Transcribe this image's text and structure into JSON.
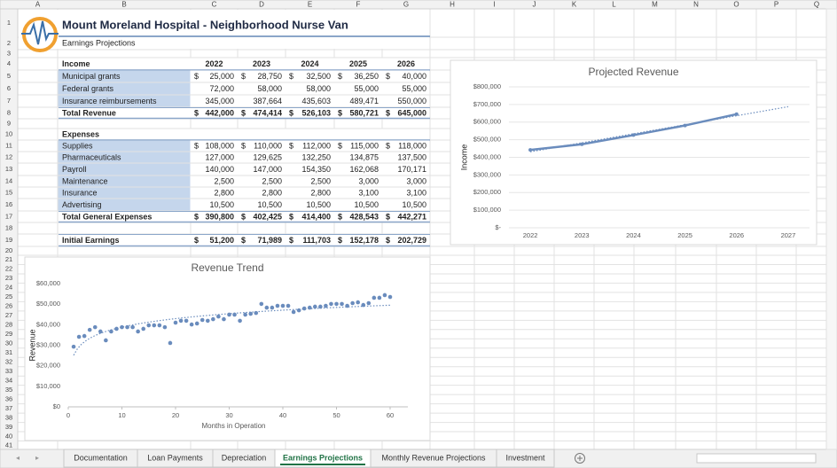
{
  "header": {
    "title": "Mount Moreland Hospital - Neighborhood Nurse Van",
    "subtitle": "Earnings Projections"
  },
  "columns": [
    "A",
    "B",
    "C",
    "D",
    "E",
    "F",
    "G",
    "H",
    "I",
    "J",
    "K",
    "L",
    "M",
    "N",
    "O",
    "P",
    "Q"
  ],
  "rows": [
    1,
    2,
    3,
    4,
    5,
    6,
    7,
    8,
    9,
    10,
    11,
    12,
    13,
    14,
    15,
    16,
    17,
    18,
    19,
    20,
    21,
    22,
    23,
    24,
    25,
    26,
    27,
    28,
    29,
    30,
    31,
    32,
    33,
    34,
    35,
    36,
    37,
    38,
    39,
    40,
    41
  ],
  "table": {
    "currency_symbol": "$",
    "rows": [
      {
        "label": "Income",
        "style": "header",
        "values": [
          "2022",
          "2023",
          "2024",
          "2025",
          "2026"
        ]
      },
      {
        "label": "Municipal grants",
        "style": "item",
        "dollar": true,
        "values": [
          "25,000",
          "28,750",
          "32,500",
          "36,250",
          "40,000"
        ]
      },
      {
        "label": "Federal grants",
        "style": "item",
        "values": [
          "72,000",
          "58,000",
          "58,000",
          "55,000",
          "55,000"
        ]
      },
      {
        "label": "Insurance reimbursements",
        "style": "item",
        "values": [
          "345,000",
          "387,664",
          "435,603",
          "489,471",
          "550,000"
        ]
      },
      {
        "label": "Total Revenue",
        "style": "total",
        "dollar": true,
        "values": [
          "442,000",
          "474,414",
          "526,103",
          "580,721",
          "645,000"
        ]
      },
      {
        "label": "Expenses",
        "style": "header"
      },
      {
        "label": "Supplies",
        "style": "item",
        "dollar": true,
        "values": [
          "108,000",
          "110,000",
          "112,000",
          "115,000",
          "118,000"
        ]
      },
      {
        "label": "Pharmaceuticals",
        "style": "item",
        "values": [
          "127,000",
          "129,625",
          "132,250",
          "134,875",
          "137,500"
        ]
      },
      {
        "label": "Payroll",
        "style": "item",
        "values": [
          "140,000",
          "147,000",
          "154,350",
          "162,068",
          "170,171"
        ]
      },
      {
        "label": "Maintenance",
        "style": "item",
        "values": [
          "2,500",
          "2,500",
          "2,500",
          "3,000",
          "3,000"
        ]
      },
      {
        "label": "Insurance",
        "style": "item",
        "values": [
          "2,800",
          "2,800",
          "2,800",
          "3,100",
          "3,100"
        ]
      },
      {
        "label": "Advertising",
        "style": "item",
        "values": [
          "10,500",
          "10,500",
          "10,500",
          "10,500",
          "10,500"
        ]
      },
      {
        "label": "Total General Expenses",
        "style": "total",
        "dollar": true,
        "values": [
          "390,800",
          "402,425",
          "414,400",
          "428,543",
          "442,271"
        ]
      },
      {
        "label": "Initial Earnings",
        "style": "total",
        "dollar": true,
        "values": [
          "51,200",
          "71,989",
          "111,703",
          "152,178",
          "202,729"
        ]
      }
    ]
  },
  "chart_data": [
    {
      "type": "line",
      "title": "Projected Revenue",
      "y_label": "Income",
      "categories": [
        "2022",
        "2023",
        "2024",
        "2025",
        "2026",
        "2027"
      ],
      "series": [
        {
          "name": "Total Revenue",
          "color": "#6a8cbd",
          "values": [
            442000,
            474414,
            526103,
            580721,
            645000,
            null
          ]
        }
      ],
      "trendline": "linear",
      "grid": true,
      "ylim": [
        0,
        800000
      ],
      "yticks": [
        {
          "value": 0,
          "label": "$-"
        },
        {
          "value": 100000,
          "label": "$100,000"
        },
        {
          "value": 200000,
          "label": "$200,000"
        },
        {
          "value": 300000,
          "label": "$300,000"
        },
        {
          "value": 400000,
          "label": "$400,000"
        },
        {
          "value": 500000,
          "label": "$500,000"
        },
        {
          "value": 600000,
          "label": "$600,000"
        },
        {
          "value": 700000,
          "label": "$700,000"
        },
        {
          "value": 800000,
          "label": "$800,000"
        }
      ]
    },
    {
      "type": "scatter",
      "title": "Revenue Trend",
      "x_label": "Months in Operation",
      "y_label": "Revenue",
      "color": "#6a8cbd",
      "trendline": "logarithmic",
      "grid": false,
      "x": [
        1,
        2,
        3,
        4,
        5,
        6,
        7,
        8,
        9,
        10,
        11,
        12,
        13,
        14,
        15,
        16,
        17,
        18,
        19,
        20,
        21,
        22,
        23,
        24,
        25,
        26,
        27,
        28,
        29,
        30,
        31,
        32,
        33,
        34,
        35,
        36,
        37,
        38,
        39,
        40,
        41,
        42,
        43,
        44,
        45,
        46,
        47,
        48,
        49,
        50,
        51,
        52,
        53,
        54,
        55,
        56,
        57,
        58,
        59,
        60
      ],
      "values": [
        29300,
        34100,
        34500,
        37500,
        38800,
        36700,
        32400,
        36700,
        38000,
        38800,
        38800,
        38800,
        36700,
        38000,
        39700,
        39700,
        39700,
        38800,
        31100,
        41000,
        41900,
        41900,
        40100,
        40600,
        42300,
        41900,
        42700,
        44000,
        42700,
        44900,
        44900,
        41900,
        44900,
        45300,
        45700,
        50100,
        48300,
        48300,
        49200,
        49200,
        49200,
        46200,
        47000,
        47900,
        48300,
        48800,
        48800,
        49200,
        50100,
        50100,
        50100,
        49200,
        50500,
        50900,
        49600,
        50500,
        53100,
        53100,
        54400,
        53500
      ],
      "xlim": [
        0,
        60
      ],
      "xticks": [
        0,
        10,
        20,
        30,
        40,
        50,
        60
      ],
      "ylim": [
        0,
        60000
      ],
      "yticks": [
        {
          "value": 0,
          "label": "$0"
        },
        {
          "value": 10000,
          "label": "$10,000"
        },
        {
          "value": 20000,
          "label": "$20,000"
        },
        {
          "value": 30000,
          "label": "$30,000"
        },
        {
          "value": 40000,
          "label": "$40,000"
        },
        {
          "value": 50000,
          "label": "$50,000"
        },
        {
          "value": 60000,
          "label": "$60,000"
        }
      ]
    }
  ],
  "tabs": [
    "Documentation",
    "Loan Payments",
    "Depreciation",
    "Earnings Projections",
    "Monthly Revenue Projections",
    "Investment"
  ],
  "active_tab": 3
}
